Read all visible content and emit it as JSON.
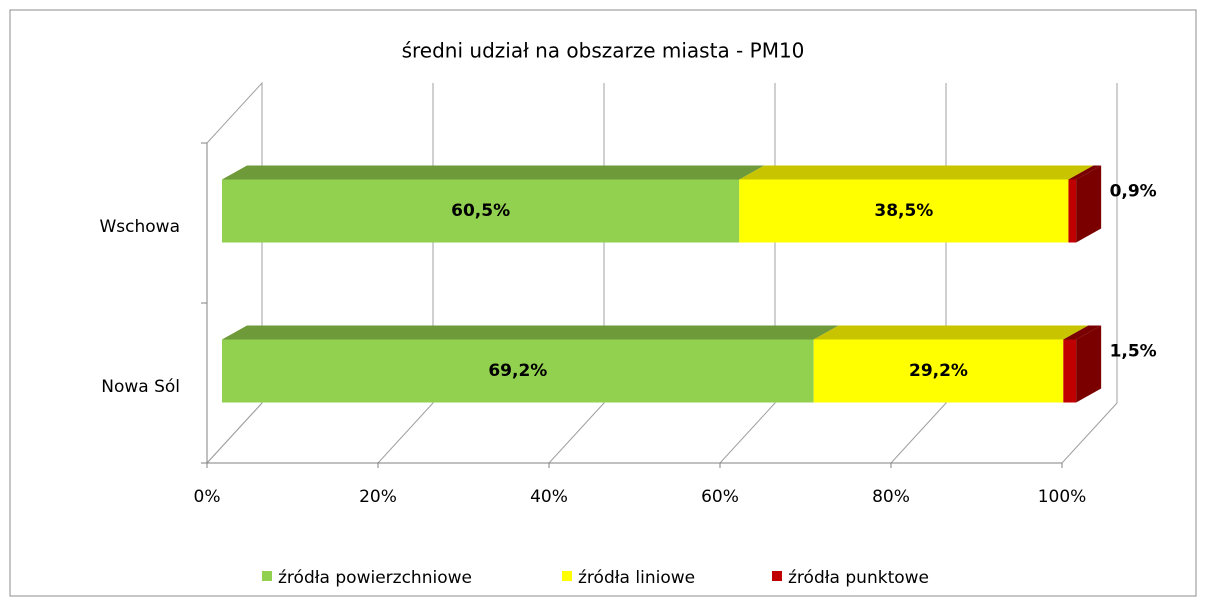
{
  "chart_data": {
    "type": "bar3d_stacked_horizontal",
    "title": "średni udział na obszarze miasta - PM10",
    "categories": [
      "Wschowa",
      "Nowa Sól"
    ],
    "series": [
      {
        "name": "źródła powierzchniowe",
        "color": "#92d050",
        "top_color": "#6e9a3a",
        "values": [
          60.5,
          69.2
        ],
        "value_labels": [
          "60,5%",
          "69,2%"
        ]
      },
      {
        "name": "źródła liniowe",
        "color": "#ffff00",
        "top_color": "#c8c400",
        "values": [
          38.5,
          29.2
        ],
        "value_labels": [
          "38,5%",
          "29,2%"
        ]
      },
      {
        "name": "źródła punktowe",
        "color": "#c00000",
        "top_color": "#7a0000",
        "values": [
          0.9,
          1.5
        ],
        "value_labels": [
          "0,9%",
          "1,5%"
        ]
      }
    ],
    "xlim": [
      0,
      100
    ],
    "xticks": [
      {
        "value": 0,
        "label": "0%"
      },
      {
        "value": 20,
        "label": "20%"
      },
      {
        "value": 40,
        "label": "40%"
      },
      {
        "value": 60,
        "label": "60%"
      },
      {
        "value": 80,
        "label": "80%"
      },
      {
        "value": 100,
        "label": "100%"
      }
    ],
    "grid": true,
    "legend": "bottom"
  }
}
